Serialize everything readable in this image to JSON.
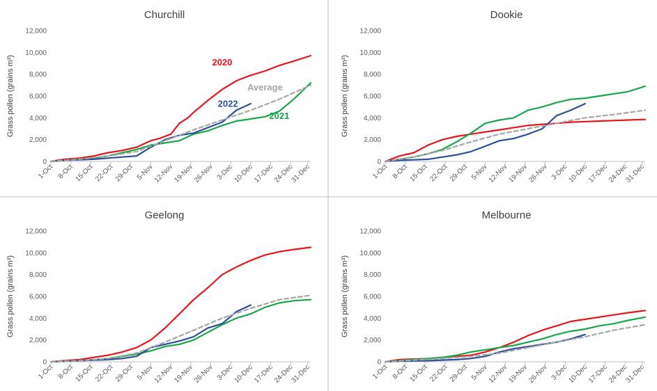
{
  "chart_data": [
    {
      "type": "line",
      "title": "Churchill",
      "ylabel": "Grass pollen (grains m³)",
      "ylim": [
        0,
        12000
      ],
      "yticks": [
        "0",
        "2,000",
        "4,000",
        "6,000",
        "8,000",
        "10,000",
        "12,000"
      ],
      "xticks": [
        "1-Oct",
        "8-Oct",
        "15-Oct",
        "22-Oct",
        "29-Oct",
        "5-Nov",
        "12-Nov",
        "19-Nov",
        "26-Nov",
        "3-Dec",
        "10-Dec",
        "17-Dec",
        "24-Dec",
        "31-Dec"
      ],
      "series": [
        {
          "name": "2020",
          "color": "#e8141b",
          "dash": false,
          "labeled": true,
          "x": [
            0,
            5,
            10,
            15,
            20,
            25,
            30,
            35,
            38,
            42,
            45,
            48,
            50,
            55,
            60,
            65,
            70,
            75,
            80,
            85,
            91
          ],
          "y": [
            0,
            200,
            300,
            500,
            800,
            1000,
            1300,
            1900,
            2100,
            2500,
            3500,
            4000,
            4500,
            5600,
            6600,
            7400,
            7900,
            8300,
            8800,
            9200,
            9700
          ]
        },
        {
          "name": "2021",
          "color": "#19a64a",
          "dash": false,
          "labeled": true,
          "x": [
            0,
            5,
            10,
            15,
            20,
            25,
            30,
            35,
            40,
            45,
            50,
            55,
            60,
            65,
            70,
            75,
            80,
            85,
            91
          ],
          "y": [
            0,
            100,
            200,
            300,
            500,
            800,
            1100,
            1500,
            1700,
            1900,
            2500,
            2800,
            3300,
            3700,
            3900,
            4100,
            4600,
            5700,
            7200
          ]
        },
        {
          "name": "2022",
          "color": "#2b4e96",
          "dash": false,
          "labeled": true,
          "x": [
            0,
            5,
            10,
            15,
            20,
            25,
            30,
            35,
            40,
            45,
            50,
            55,
            60,
            65,
            70
          ],
          "y": [
            0,
            100,
            150,
            200,
            300,
            400,
            500,
            1300,
            2000,
            2400,
            2600,
            3100,
            3600,
            4700,
            5300
          ]
        },
        {
          "name": "Average",
          "color": "#a6a6a6",
          "dash": true,
          "labeled": true,
          "x": [
            0,
            10,
            20,
            30,
            40,
            50,
            60,
            70,
            80,
            91
          ],
          "y": [
            0,
            200,
            500,
            900,
            1900,
            2900,
            3800,
            4700,
            5700,
            7000
          ]
        }
      ],
      "annotations": [
        {
          "text": "2020",
          "color": "#e8141b",
          "x": 60,
          "y": 8800
        },
        {
          "text": "Average",
          "color": "#a6a6a6",
          "x": 75,
          "y": 6500
        },
        {
          "text": "2022",
          "color": "#2b4e96",
          "x": 62,
          "y": 5000
        },
        {
          "text": "2021",
          "color": "#19a64a",
          "x": 80,
          "y": 3900
        }
      ]
    },
    {
      "type": "line",
      "title": "Dookie",
      "ylabel": "Grass pollen (grains m³)",
      "ylim": [
        0,
        12000
      ],
      "yticks": [
        "0",
        "2,000",
        "4,000",
        "6,000",
        "8,000",
        "10,000",
        "12,000"
      ],
      "xticks": [
        "1-Oct",
        "8-Oct",
        "15-Oct",
        "22-Oct",
        "29-Oct",
        "5-Nov",
        "12-Nov",
        "19-Nov",
        "26-Nov",
        "3-Dec",
        "10-Dec",
        "17-Dec",
        "24-Dec",
        "31-Dec"
      ],
      "series": [
        {
          "name": "2020",
          "color": "#e8141b",
          "dash": false,
          "labeled": false,
          "x": [
            0,
            5,
            10,
            15,
            20,
            25,
            30,
            35,
            40,
            45,
            50,
            55,
            60,
            65,
            70,
            75,
            80,
            85,
            91
          ],
          "y": [
            0,
            500,
            800,
            1500,
            2000,
            2300,
            2500,
            2700,
            2900,
            3100,
            3300,
            3400,
            3500,
            3600,
            3650,
            3700,
            3750,
            3800,
            3850
          ]
        },
        {
          "name": "2021",
          "color": "#19a64a",
          "dash": false,
          "labeled": false,
          "x": [
            0,
            5,
            10,
            15,
            20,
            25,
            30,
            35,
            40,
            45,
            50,
            55,
            60,
            65,
            70,
            75,
            80,
            85,
            91
          ],
          "y": [
            0,
            200,
            400,
            700,
            1100,
            1800,
            2600,
            3500,
            3800,
            4000,
            4700,
            5000,
            5400,
            5700,
            5800,
            6000,
            6200,
            6400,
            6900
          ]
        },
        {
          "name": "2022",
          "color": "#2b4e96",
          "dash": false,
          "labeled": false,
          "x": [
            0,
            5,
            10,
            15,
            20,
            25,
            30,
            35,
            40,
            45,
            50,
            55,
            60,
            65,
            70
          ],
          "y": [
            0,
            100,
            150,
            200,
            400,
            600,
            900,
            1400,
            1900,
            2100,
            2500,
            3000,
            4200,
            4700,
            5300
          ]
        },
        {
          "name": "Average",
          "color": "#a6a6a6",
          "dash": true,
          "labeled": false,
          "x": [
            0,
            10,
            20,
            30,
            40,
            50,
            60,
            70,
            80,
            91
          ],
          "y": [
            0,
            400,
            1000,
            1800,
            2500,
            3000,
            3500,
            4000,
            4300,
            4700
          ]
        }
      ],
      "annotations": []
    },
    {
      "type": "line",
      "title": "Geelong",
      "ylabel": "Grass pollen (grains m³)",
      "ylim": [
        0,
        12000
      ],
      "yticks": [
        "0",
        "2,000",
        "4,000",
        "6,000",
        "8,000",
        "10,000",
        "12,000"
      ],
      "xticks": [
        "1-Oct",
        "8-Oct",
        "15-Oct",
        "22-Oct",
        "29-Oct",
        "5-Nov",
        "12-Nov",
        "19-Nov",
        "26-Nov",
        "3-Dec",
        "10-Dec",
        "17-Dec",
        "24-Dec",
        "31-Dec"
      ],
      "series": [
        {
          "name": "2020",
          "color": "#e8141b",
          "dash": false,
          "labeled": false,
          "x": [
            0,
            5,
            10,
            15,
            20,
            25,
            30,
            35,
            40,
            45,
            50,
            55,
            60,
            65,
            70,
            75,
            80,
            85,
            91
          ],
          "y": [
            0,
            100,
            200,
            400,
            600,
            900,
            1300,
            2000,
            3100,
            4400,
            5700,
            6800,
            8000,
            8700,
            9300,
            9800,
            10100,
            10300,
            10500
          ]
        },
        {
          "name": "2021",
          "color": "#19a64a",
          "dash": false,
          "labeled": false,
          "x": [
            0,
            5,
            10,
            15,
            20,
            25,
            30,
            35,
            40,
            45,
            50,
            55,
            60,
            65,
            70,
            75,
            80,
            85,
            91
          ],
          "y": [
            0,
            50,
            100,
            200,
            300,
            500,
            700,
            1000,
            1400,
            1600,
            2000,
            2700,
            3400,
            4000,
            4400,
            5000,
            5400,
            5600,
            5700
          ]
        },
        {
          "name": "2022",
          "color": "#2b4e96",
          "dash": false,
          "labeled": false,
          "x": [
            0,
            5,
            10,
            15,
            20,
            25,
            30,
            35,
            40,
            45,
            50,
            55,
            60,
            65,
            70
          ],
          "y": [
            0,
            50,
            100,
            150,
            200,
            300,
            500,
            1300,
            1600,
            1900,
            2300,
            3100,
            3500,
            4600,
            5200
          ]
        },
        {
          "name": "Average",
          "color": "#a6a6a6",
          "dash": true,
          "labeled": false,
          "x": [
            0,
            10,
            20,
            30,
            40,
            50,
            60,
            70,
            80,
            91
          ],
          "y": [
            0,
            100,
            300,
            800,
            1800,
            2900,
            4000,
            4900,
            5700,
            6100
          ]
        }
      ],
      "annotations": []
    },
    {
      "type": "line",
      "title": "Melbourne",
      "ylabel": "Grass pollen (grains m³)",
      "ylim": [
        0,
        12000
      ],
      "yticks": [
        "0",
        "2,000",
        "4,000",
        "6,000",
        "8,000",
        "10,000",
        "12,000"
      ],
      "xticks": [
        "1-Oct",
        "8-Oct",
        "15-Oct",
        "22-Oct",
        "29-Oct",
        "5-Nov",
        "12-Nov",
        "19-Nov",
        "26-Nov",
        "3-Dec",
        "10-Dec",
        "17-Dec",
        "24-Dec",
        "31-Dec"
      ],
      "series": [
        {
          "name": "2020",
          "color": "#e8141b",
          "dash": false,
          "labeled": false,
          "x": [
            0,
            5,
            10,
            15,
            20,
            25,
            30,
            35,
            40,
            45,
            50,
            55,
            60,
            65,
            70,
            75,
            80,
            85,
            91
          ],
          "y": [
            0,
            200,
            250,
            300,
            400,
            500,
            600,
            900,
            1300,
            1800,
            2400,
            2900,
            3300,
            3700,
            3900,
            4100,
            4300,
            4500,
            4700
          ]
        },
        {
          "name": "2021",
          "color": "#19a64a",
          "dash": false,
          "labeled": false,
          "x": [
            0,
            5,
            10,
            15,
            20,
            25,
            30,
            35,
            40,
            45,
            50,
            55,
            60,
            65,
            70,
            75,
            80,
            85,
            91
          ],
          "y": [
            0,
            100,
            200,
            300,
            400,
            600,
            900,
            1100,
            1300,
            1500,
            1800,
            2100,
            2500,
            2800,
            3000,
            3300,
            3500,
            3800,
            4100
          ]
        },
        {
          "name": "2022",
          "color": "#2b4e96",
          "dash": false,
          "labeled": false,
          "x": [
            0,
            5,
            10,
            15,
            20,
            25,
            30,
            35,
            40,
            45,
            50,
            55,
            60,
            65,
            70
          ],
          "y": [
            0,
            50,
            80,
            100,
            150,
            200,
            300,
            500,
            900,
            1200,
            1400,
            1600,
            1800,
            2100,
            2500
          ]
        },
        {
          "name": "Average",
          "color": "#a6a6a6",
          "dash": true,
          "labeled": false,
          "x": [
            0,
            10,
            20,
            30,
            40,
            50,
            60,
            70,
            80,
            91
          ],
          "y": [
            0,
            150,
            300,
            500,
            800,
            1300,
            1800,
            2300,
            2900,
            3400
          ]
        }
      ],
      "annotations": []
    }
  ]
}
